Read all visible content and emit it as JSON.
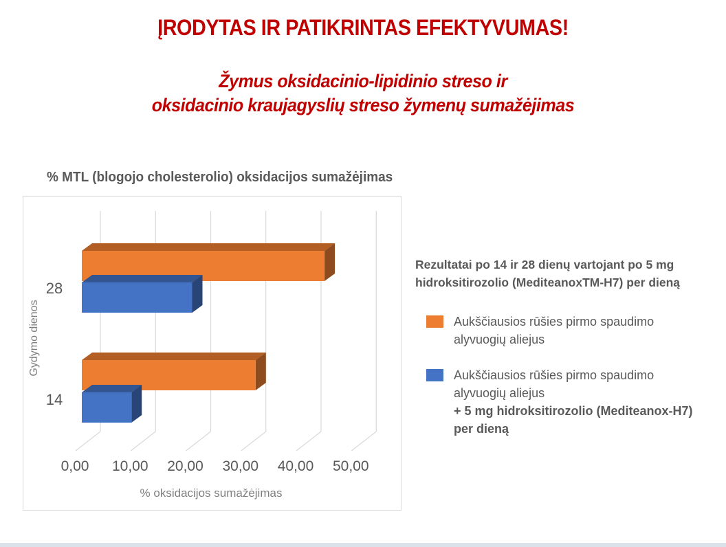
{
  "page": {
    "title": "ĮRODYTAS IR PATIKRINTAS EFEKTYVUMAS!",
    "subtitle_line1": "Žymus oksidacinio-lipidinio streso ir",
    "subtitle_line2": "oksidacinio kraujagyslių streso žymenų sumažėjimas",
    "title_color": "#c00000",
    "footer_strip_color": "#dbe2e9"
  },
  "chart_data": {
    "type": "bar",
    "orientation": "horizontal",
    "style": "3d",
    "title": "% MTL (blogojo cholesterolio) oksidacijos sumažėjimas",
    "ylabel": "Gydymo dienos",
    "xlabel": "% oksidacijos sumažėjimas",
    "categories": [
      "28",
      "14"
    ],
    "series": [
      {
        "name": "Aukščiausios rūšies pirmo spaudimo alyvuogių aliejus",
        "color": "#ED7D31",
        "values": [
          44,
          31.5
        ]
      },
      {
        "name": "Aukščiausios rūšies pirmo spaudimo alyvuogių aliejus + 5 mg hidroksitirozolio (Mediteanox-H7) per dieną",
        "color": "#4472C4",
        "values": [
          20,
          9
        ]
      }
    ],
    "x_ticks": [
      "0,00",
      "10,00",
      "20,00",
      "30,00",
      "40,00",
      "50,00"
    ],
    "xlim": [
      0,
      50
    ],
    "grid": true,
    "legend_position": "right",
    "text_color": "#595959",
    "axis_title_color": "#7f7f7f",
    "gridline_color": "#d9d9d9"
  },
  "annotation": {
    "heading_line1": "Rezultatai po 14 ir 28 dienų vartojant po 5 mg",
    "heading_line2": "hidroksitirozolio (MediteanoxTM-H7) per dieną",
    "legend1": {
      "line1": "Aukščiausios rūšies pirmo spaudimo",
      "line2": "alyvuogių aliejus"
    },
    "legend2": {
      "line1": "Aukščiausios rūšies pirmo spaudimo",
      "line2": "alyvuogių aliejus",
      "line3_bold": "+ 5 mg hidroksitirozolio (Mediteanox-H7)",
      "line4_bold": "per dieną"
    }
  }
}
